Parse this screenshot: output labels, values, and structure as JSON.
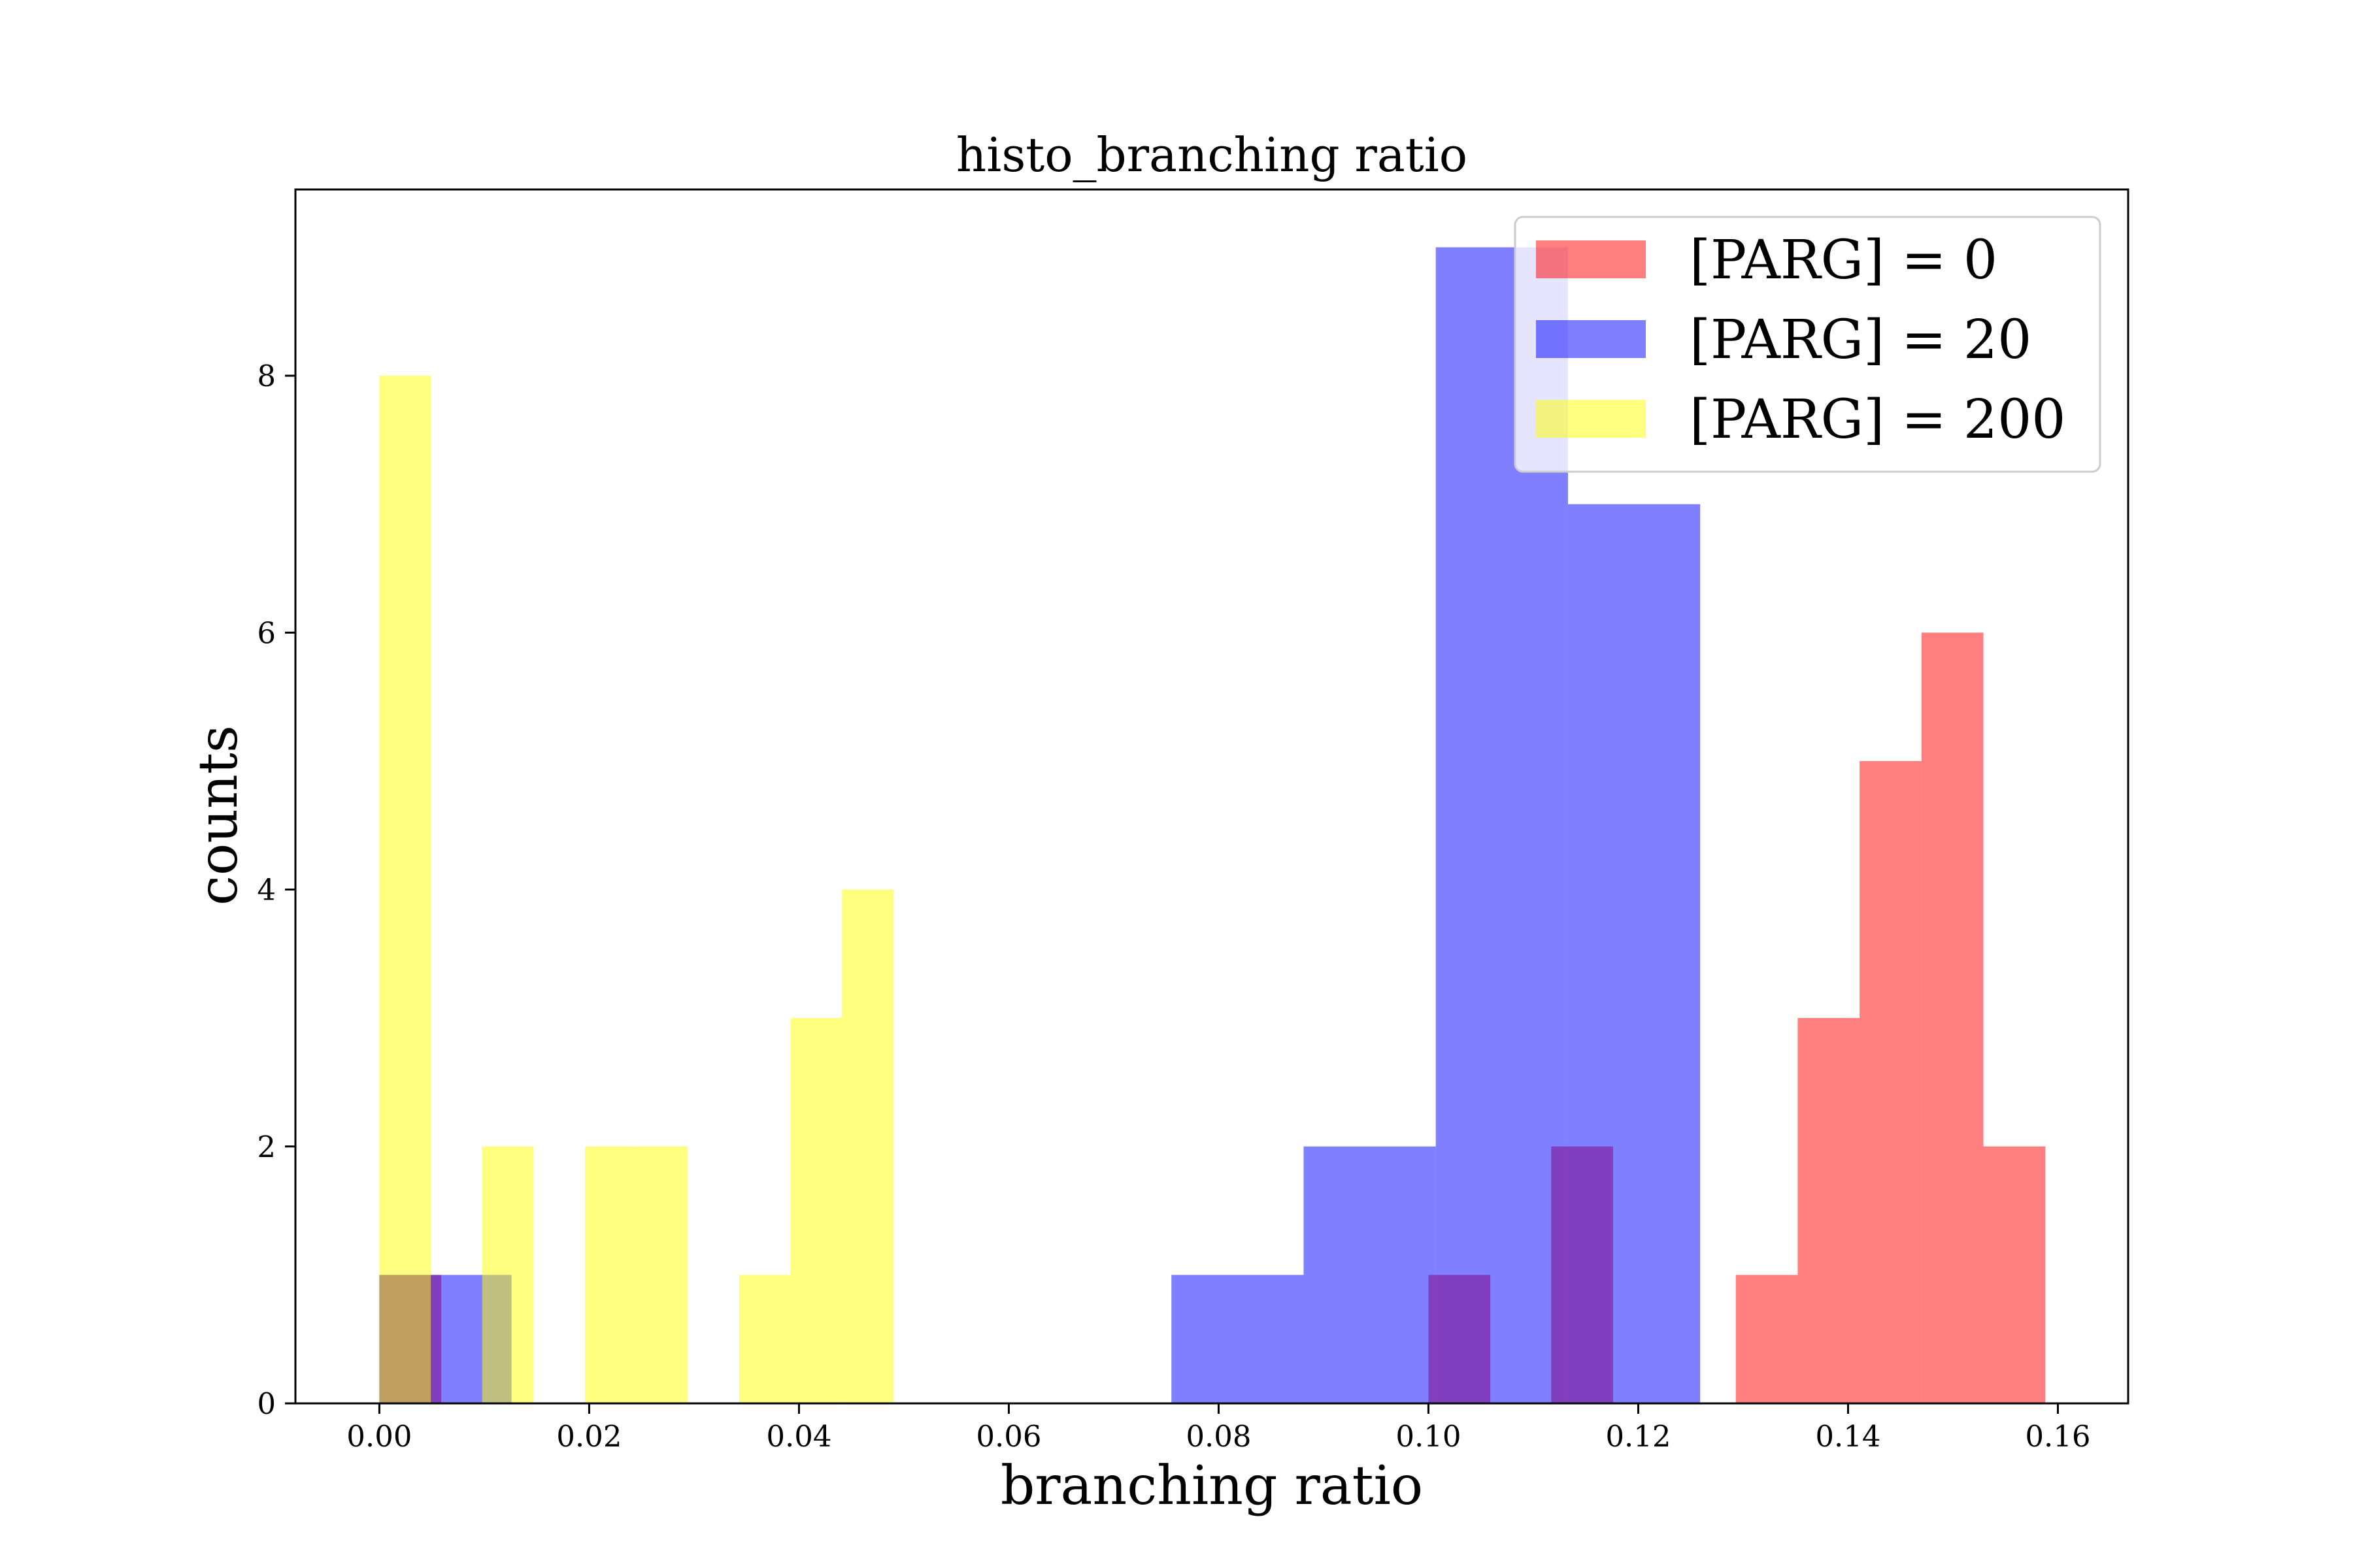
{
  "chart_data": {
    "type": "bar",
    "subtype": "overlapping histogram",
    "title": "histo_branching ratio",
    "xlabel": "branching ratio",
    "ylabel": "counts",
    "xlim": [
      -0.008,
      0.1667
    ],
    "ylim": [
      0,
      9.45
    ],
    "xticks": [
      "0.00",
      "0.02",
      "0.04",
      "0.06",
      "0.08",
      "0.10",
      "0.12",
      "0.14",
      "0.16"
    ],
    "yticks": [
      "0",
      "2",
      "4",
      "6",
      "8"
    ],
    "grid": false,
    "legend_position": "top-right",
    "series": [
      {
        "name": "[PARG] = 0",
        "color": "#ff0000",
        "opacity": 0.5,
        "bins": [
          {
            "x0": 0.0,
            "x1": 0.0059,
            "count": 1
          },
          {
            "x0": 0.1,
            "x1": 0.1059,
            "count": 1
          },
          {
            "x0": 0.1117,
            "x1": 0.1176,
            "count": 2
          },
          {
            "x0": 0.1293,
            "x1": 0.1352,
            "count": 1
          },
          {
            "x0": 0.1352,
            "x1": 0.1411,
            "count": 3
          },
          {
            "x0": 0.1411,
            "x1": 0.147,
            "count": 5
          },
          {
            "x0": 0.147,
            "x1": 0.1529,
            "count": 6
          },
          {
            "x0": 0.1529,
            "x1": 0.1588,
            "count": 2
          }
        ]
      },
      {
        "name": "[PARG] = 20",
        "color": "#0000ff",
        "opacity": 0.5,
        "bins": [
          {
            "x0": 0.0,
            "x1": 0.005,
            "count": 1
          },
          {
            "x0": 0.005,
            "x1": 0.01,
            "count": 1
          },
          {
            "x0": 0.01,
            "x1": 0.0126,
            "count": 1
          },
          {
            "x0": 0.0755,
            "x1": 0.0881,
            "count": 1
          },
          {
            "x0": 0.0881,
            "x1": 0.1007,
            "count": 2
          },
          {
            "x0": 0.1007,
            "x1": 0.1133,
            "count": 9
          },
          {
            "x0": 0.1133,
            "x1": 0.1259,
            "count": 7
          }
        ]
      },
      {
        "name": "[PARG] = 200",
        "color": "#ffff00",
        "opacity": 0.5,
        "bins": [
          {
            "x0": 0.0,
            "x1": 0.0049,
            "count": 8
          },
          {
            "x0": 0.0098,
            "x1": 0.0147,
            "count": 2
          },
          {
            "x0": 0.0196,
            "x1": 0.0245,
            "count": 2
          },
          {
            "x0": 0.0245,
            "x1": 0.0294,
            "count": 2
          },
          {
            "x0": 0.0343,
            "x1": 0.0392,
            "count": 1
          },
          {
            "x0": 0.0392,
            "x1": 0.0441,
            "count": 3
          },
          {
            "x0": 0.0441,
            "x1": 0.049,
            "count": 4
          }
        ]
      }
    ]
  }
}
